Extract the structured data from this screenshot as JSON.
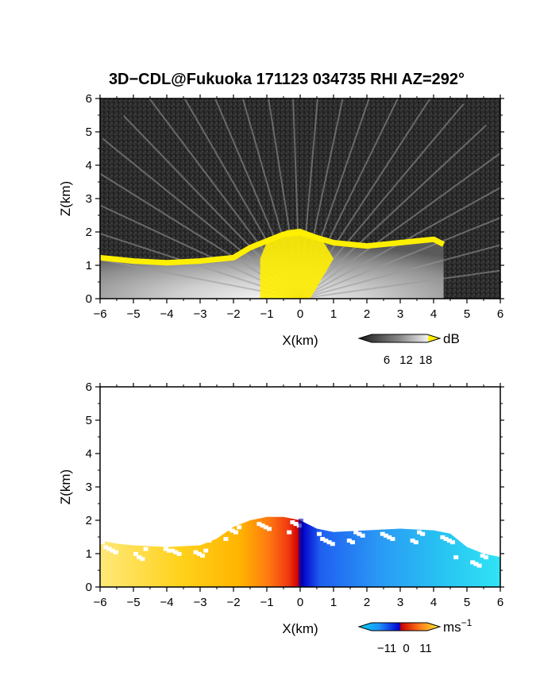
{
  "title": "3D−CDL@Fukuoka 171123 034735 RHI AZ=292°",
  "chart_data": [
    {
      "type": "heatmap",
      "name": "snr",
      "xlabel": "X(km)",
      "ylabel": "Z(km)",
      "xlim": [
        -6,
        6
      ],
      "ylim": [
        0,
        6
      ],
      "xticks": [
        "−6",
        "−5",
        "−4",
        "−3",
        "−2",
        "−1",
        "0",
        "1",
        "2",
        "3",
        "4",
        "5",
        "6"
      ],
      "yticks": [
        "0",
        "1",
        "2",
        "3",
        "4",
        "5",
        "6"
      ],
      "colorbar": {
        "unit": "dB",
        "ticks": [
          "6",
          "12",
          "18"
        ],
        "values": [
          6,
          12,
          18
        ]
      },
      "colors": {
        "background": "#2b2b2b",
        "high": "#ffef00"
      },
      "echo_top": {
        "x": [
          -6.0,
          -5.5,
          -5.0,
          -4.0,
          -3.0,
          -2.0,
          -1.5,
          -1.0,
          -0.5,
          0.0,
          0.5,
          1.0,
          2.0,
          3.0,
          3.5,
          4.0,
          4.3
        ],
        "top": [
          1.3,
          1.25,
          1.2,
          1.15,
          1.2,
          1.3,
          1.6,
          1.8,
          2.0,
          2.05,
          1.9,
          1.75,
          1.65,
          1.75,
          1.8,
          1.85,
          1.7
        ]
      }
    },
    {
      "type": "heatmap",
      "name": "doppler_velocity",
      "xlabel": "X(km)",
      "ylabel": "Z(km)",
      "xlim": [
        -6,
        6
      ],
      "ylim": [
        0,
        6
      ],
      "xticks": [
        "−6",
        "−5",
        "−4",
        "−3",
        "−2",
        "−1",
        "0",
        "1",
        "2",
        "3",
        "4",
        "5",
        "6"
      ],
      "yticks": [
        "0",
        "1",
        "2",
        "3",
        "4",
        "5",
        "6"
      ],
      "colorbar": {
        "unit": "ms",
        "unit_exponent": "−1",
        "ticks": [
          "−11",
          "0",
          "11"
        ],
        "values": [
          -11,
          0,
          11
        ]
      },
      "echo_top": {
        "x": [
          -6.0,
          -5.5,
          -5.0,
          -4.0,
          -3.0,
          -2.5,
          -2.0,
          -1.5,
          -1.0,
          -0.5,
          0.0,
          0.5,
          1.0,
          2.0,
          3.0,
          4.0,
          4.5,
          5.0,
          5.5,
          6.0
        ],
        "top": [
          1.4,
          1.3,
          1.25,
          1.2,
          1.25,
          1.45,
          1.8,
          2.0,
          2.1,
          2.1,
          2.0,
          1.75,
          1.65,
          1.7,
          1.75,
          1.7,
          1.6,
          1.2,
          1.0,
          0.9
        ]
      }
    }
  ]
}
